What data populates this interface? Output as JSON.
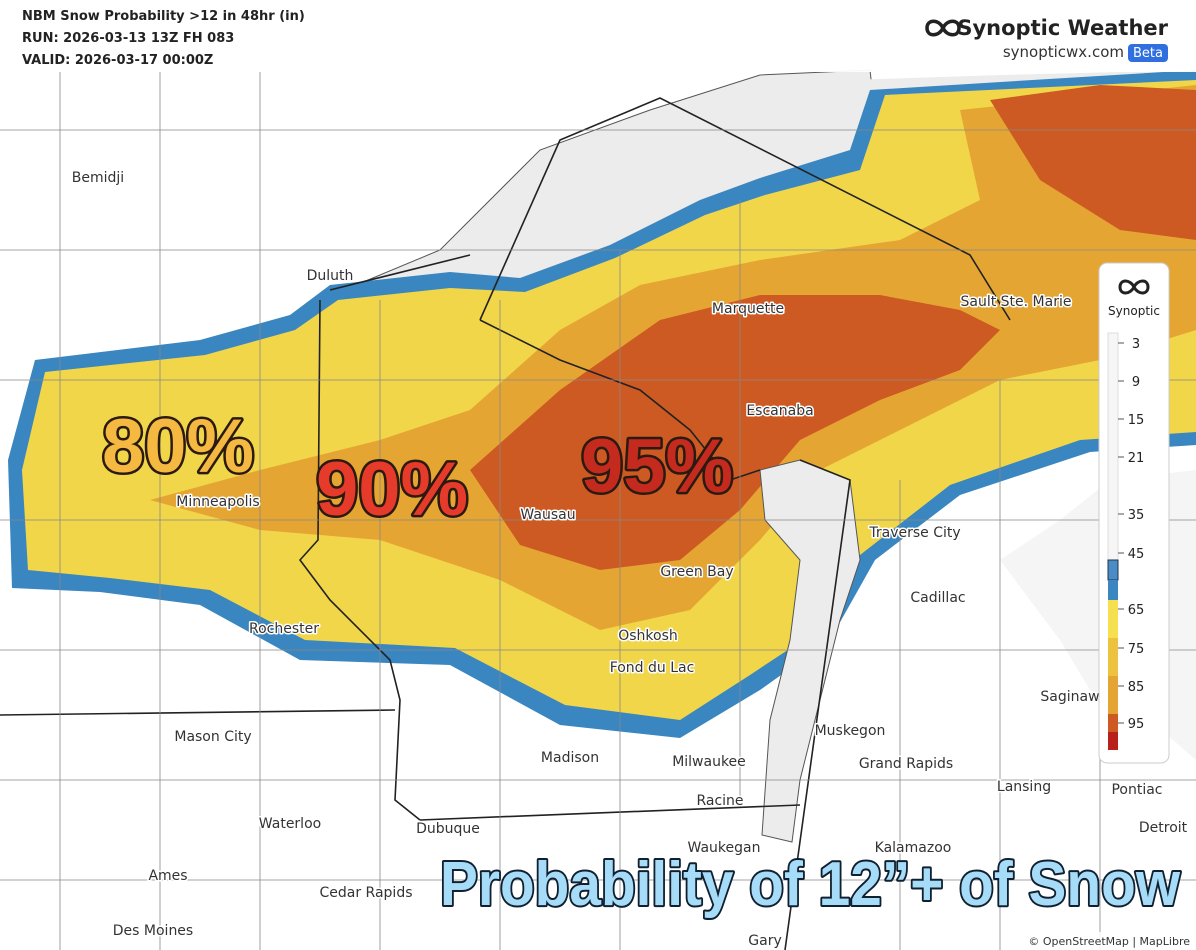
{
  "header": {
    "title": "NBM Snow Probability >12 in 48hr (in)",
    "run": "RUN: 2026-03-13 13Z FH 083",
    "valid": "VALID: 2026-03-17 00:00Z"
  },
  "brand": {
    "name": "Synoptic Weather",
    "url": "synopticwx.com",
    "badge": "Beta"
  },
  "cities": [
    "Bemidji",
    "Duluth",
    "Marquette",
    "Sault Ste. Marie",
    "Escanaba",
    "Minneapolis",
    "Wausau",
    "Traverse City",
    "Green Bay",
    "Cadillac",
    "Rochester",
    "Oshkosh",
    "Fond du Lac",
    "Saginaw",
    "Muskegon",
    "Mason City",
    "Grand Rapids",
    "Madison",
    "Milwaukee",
    "Lansing",
    "Racine",
    "Pontiac",
    "Waterloo",
    "Dubuque",
    "Detroit",
    "Waukegan",
    "Kalamazoo",
    "Ames",
    "Cedar Rapids",
    "Des Moines",
    "Gary"
  ],
  "annotations": [
    "80%",
    "90%",
    "95%"
  ],
  "legend": {
    "name": "Synoptic",
    "ticks": [
      3,
      9,
      15,
      21,
      35,
      45,
      65,
      75,
      85,
      95
    ]
  },
  "caption": "Probability of 12”+ of Snow",
  "attribution": "© OpenStreetMap | MapLibre"
}
